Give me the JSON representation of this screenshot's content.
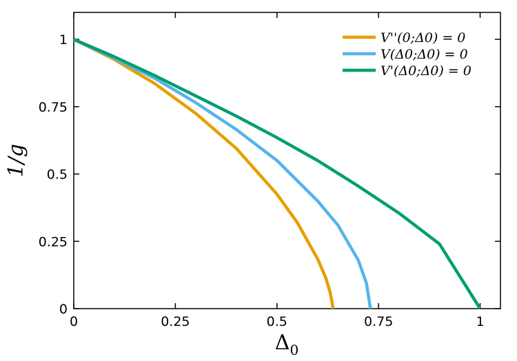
{
  "chart_data": {
    "type": "line",
    "xlabel": "Δ0",
    "ylabel": "1/g",
    "xlim": [
      0,
      1.05
    ],
    "ylim": [
      0,
      1.1
    ],
    "x_ticks": [
      0,
      0.25,
      0.5,
      0.75,
      1
    ],
    "x_tick_labels": [
      "0",
      "0.25",
      "0.5",
      "0.75",
      "1"
    ],
    "y_ticks": [
      0,
      0.25,
      0.5,
      0.75,
      1
    ],
    "y_tick_labels": [
      "0",
      "0.25",
      "0.5",
      "0.75",
      "1"
    ],
    "grid": false,
    "legend_position": "top-right",
    "series": [
      {
        "name": "V''(0;Δ0) = 0",
        "color": "#E69F00",
        "x": [
          0,
          0.1,
          0.2,
          0.3,
          0.4,
          0.5,
          0.55,
          0.6,
          0.62,
          0.63,
          0.635,
          0.638
        ],
        "y": [
          1,
          0.925,
          0.835,
          0.725,
          0.595,
          0.425,
          0.32,
          0.185,
          0.115,
          0.065,
          0.03,
          0.0
        ]
      },
      {
        "name": "V(Δ0;Δ0) = 0",
        "color": "#56B4E9",
        "x": [
          0,
          0.1,
          0.2,
          0.3,
          0.4,
          0.5,
          0.6,
          0.65,
          0.7,
          0.72,
          0.73
        ],
        "y": [
          1,
          0.93,
          0.855,
          0.765,
          0.665,
          0.55,
          0.4,
          0.31,
          0.18,
          0.095,
          0.0
        ]
      },
      {
        "name": "V'(Δ0;Δ0) = 0",
        "color": "#009E73",
        "x": [
          0,
          0.1,
          0.2,
          0.3,
          0.4,
          0.5,
          0.6,
          0.7,
          0.8,
          0.9,
          1.0
        ],
        "y": [
          1,
          0.935,
          0.865,
          0.79,
          0.715,
          0.635,
          0.55,
          0.455,
          0.355,
          0.24,
          0.0
        ]
      }
    ]
  }
}
